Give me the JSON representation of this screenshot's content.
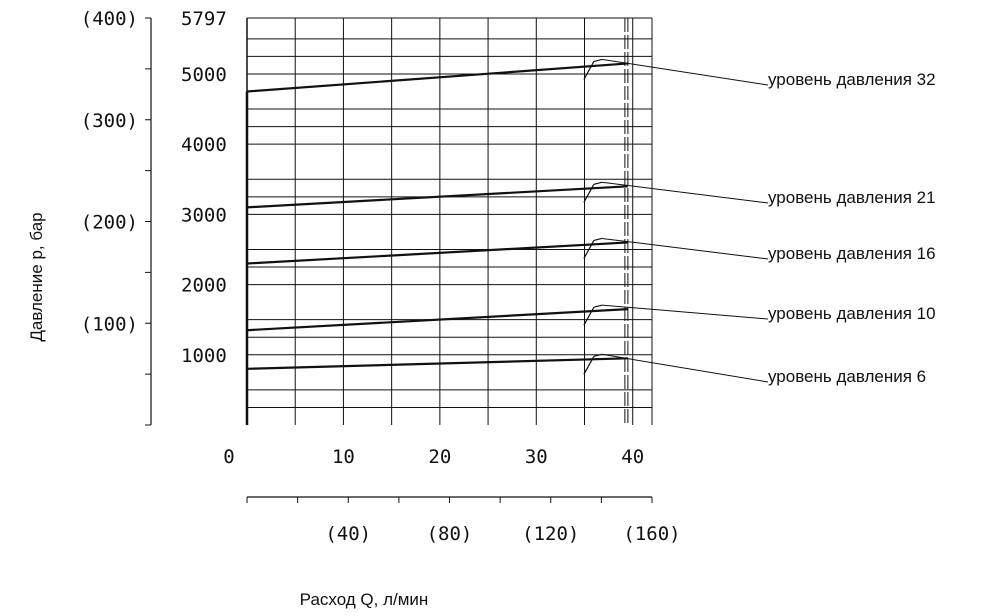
{
  "chart_data": {
    "type": "line",
    "title": "",
    "xlabel": "Расход Q, л/мин",
    "ylabel": "Давление  p, бар",
    "x_ticks": [
      "0",
      "10",
      "20",
      "30",
      "40"
    ],
    "x_secondary_ticks": [
      "(40)",
      "(80)",
      "(120)",
      "(160)"
    ],
    "y_ticks": [
      "1000",
      "2000",
      "3000",
      "4000",
      "5000",
      "5797"
    ],
    "y_secondary_ticks": [
      "(100)",
      "(200)",
      "(300)",
      "(400)"
    ],
    "xlim": [
      0,
      42
    ],
    "ylim": [
      0,
      5797
    ],
    "y_secondary_ylim": [
      0,
      400
    ],
    "grid": true,
    "max_flow_line_x": 39.5,
    "series": [
      {
        "name": "уровень давления 32",
        "x": [
          0,
          39.5
        ],
        "y": [
          4750,
          5150
        ]
      },
      {
        "name": "уровень давления 21",
        "x": [
          0,
          39.5
        ],
        "y": [
          3100,
          3400
        ]
      },
      {
        "name": "уровень давления 16",
        "x": [
          0,
          39.5
        ],
        "y": [
          2300,
          2600
        ]
      },
      {
        "name": "уровень давления 10",
        "x": [
          0,
          39.5
        ],
        "y": [
          1350,
          1650
        ]
      },
      {
        "name": "уровень давления 6",
        "x": [
          0,
          39.5
        ],
        "y": [
          800,
          950
        ]
      }
    ]
  }
}
